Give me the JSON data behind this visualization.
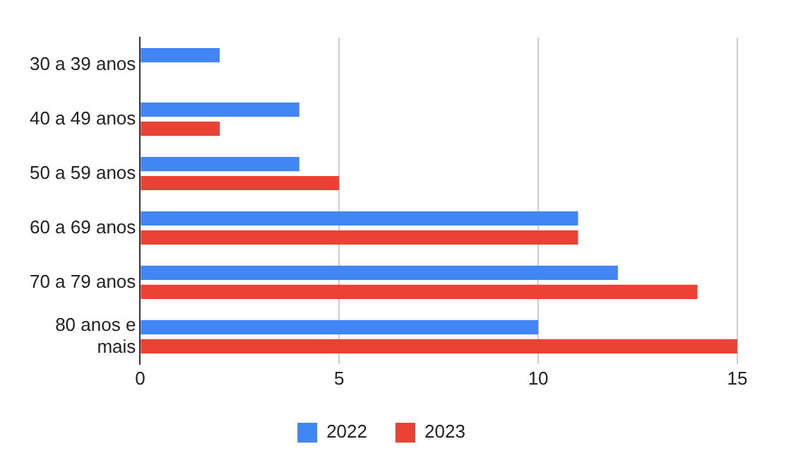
{
  "chart_data": {
    "type": "bar",
    "orientation": "horizontal",
    "categories": [
      "30 a 39 anos",
      "40 a 49 anos",
      "50 a 59 anos",
      "60 a 69 anos",
      "70 a 79 anos",
      "80 anos e mais"
    ],
    "series": [
      {
        "name": "2022",
        "color": "#4285f4",
        "values": [
          2,
          4,
          4,
          11,
          12,
          10
        ]
      },
      {
        "name": "2023",
        "color": "#ea4335",
        "values": [
          null,
          2,
          5,
          11,
          14,
          15
        ]
      }
    ],
    "xlim": [
      0,
      15
    ],
    "xticks": [
      0,
      5,
      10,
      15
    ],
    "grid": "x",
    "legend": "bottom"
  }
}
